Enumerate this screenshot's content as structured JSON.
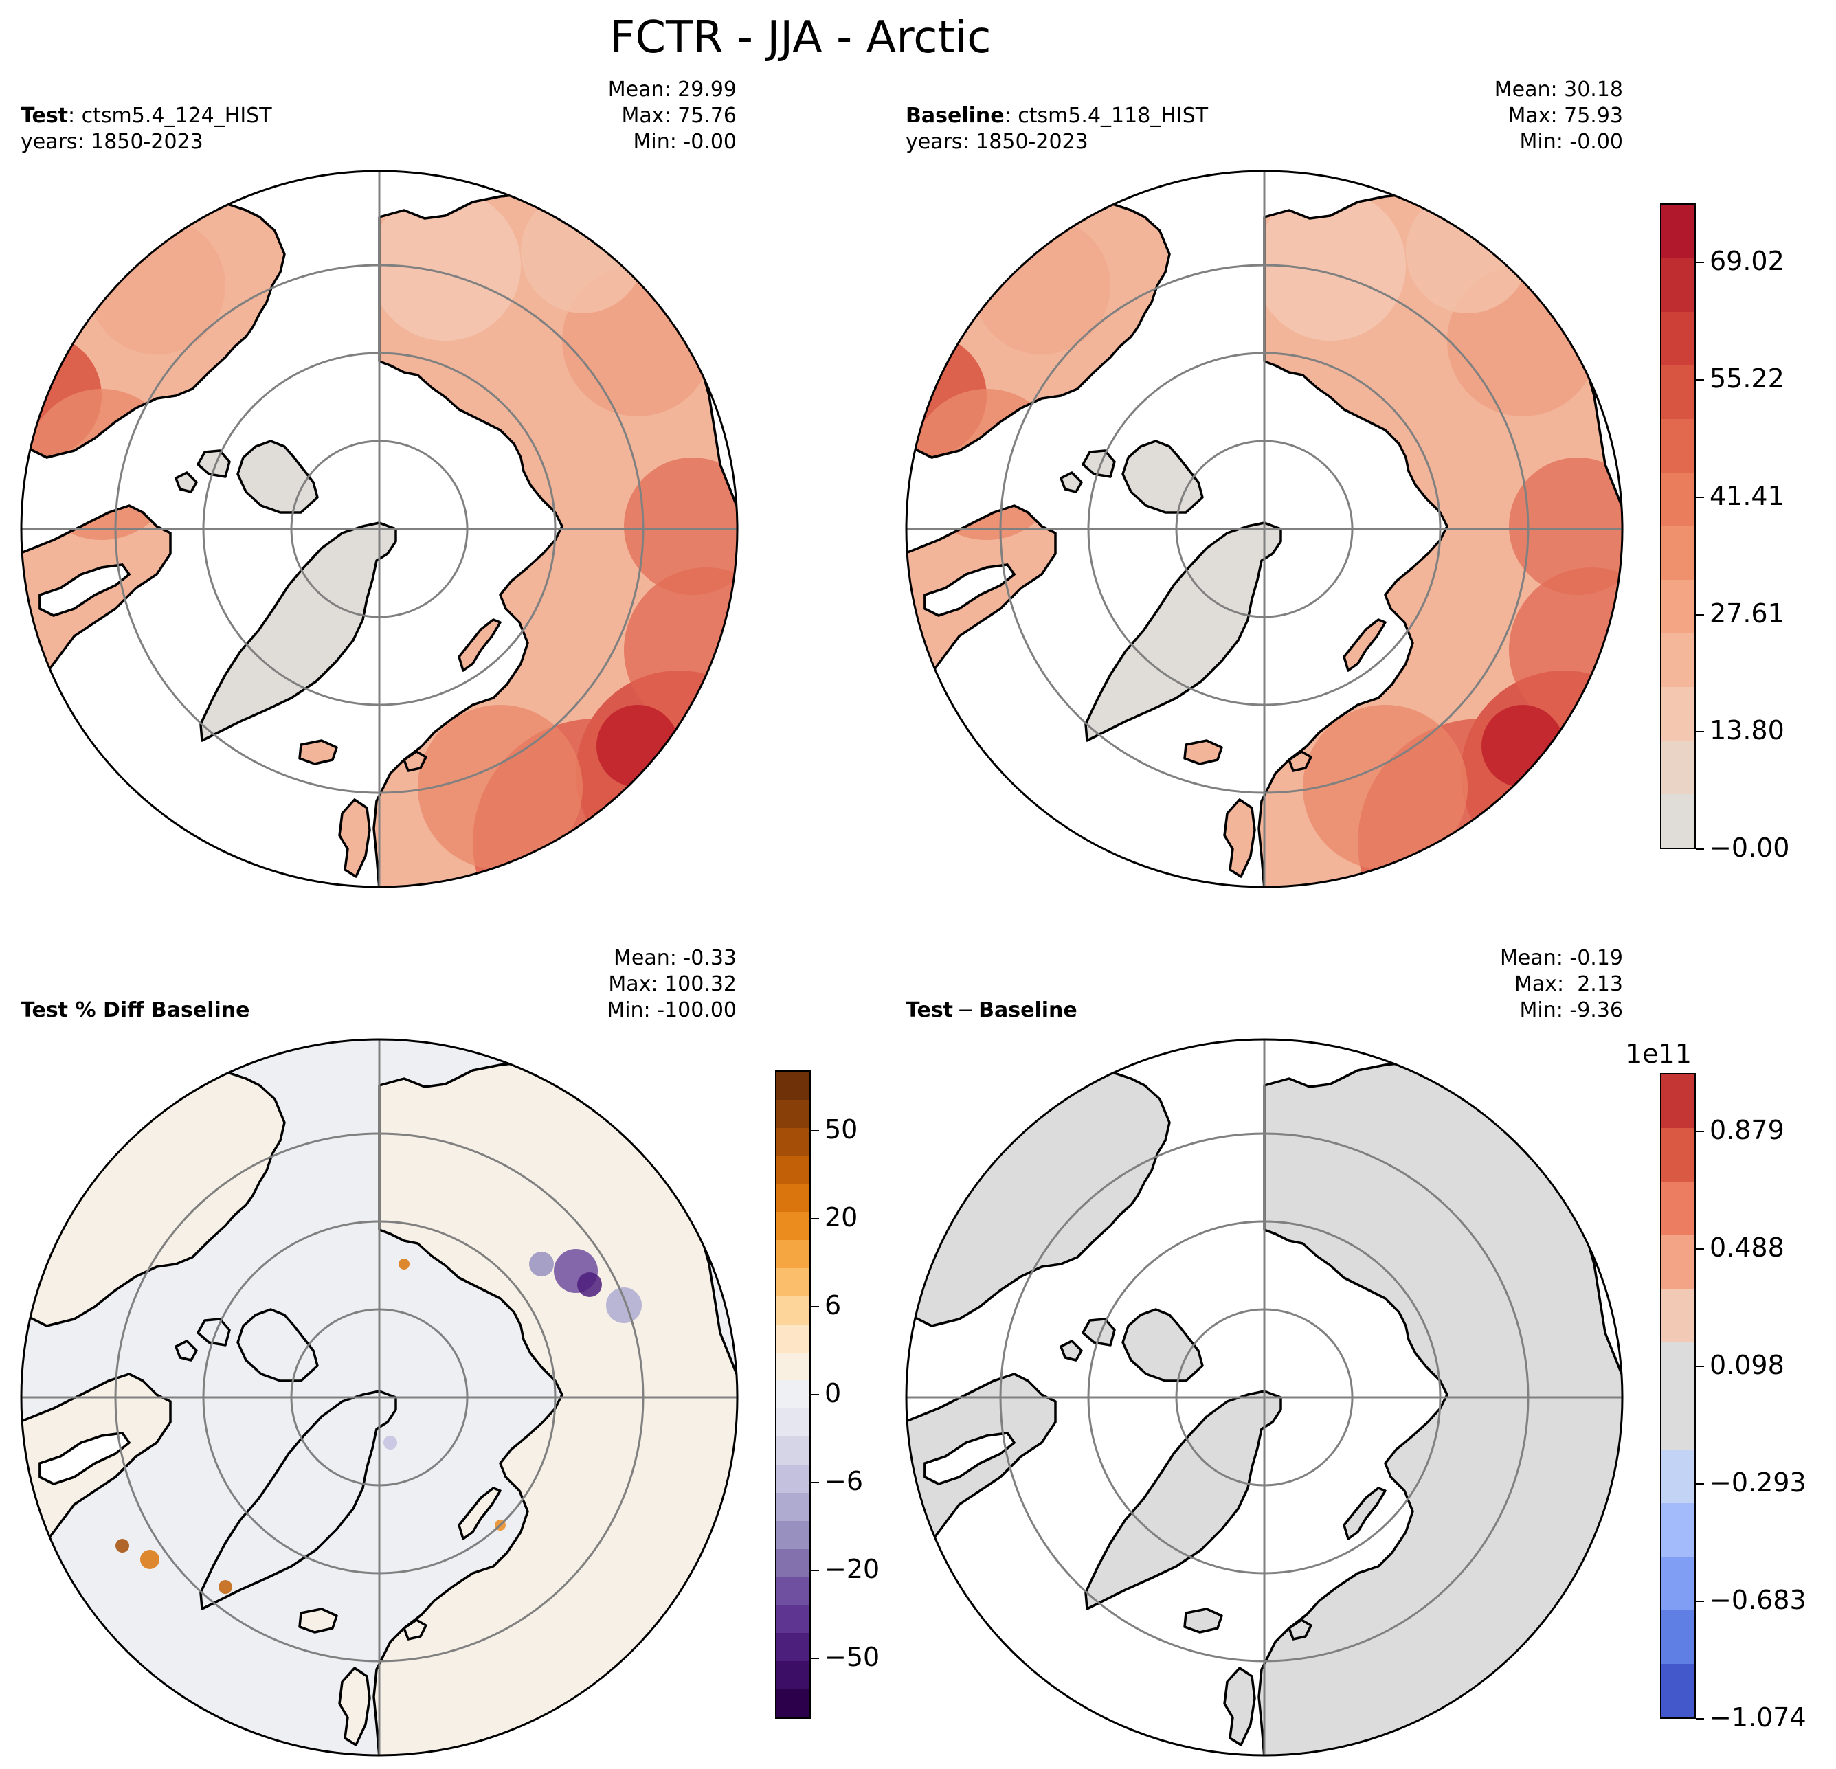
{
  "figure": {
    "title": "FCTR - JJA - Arctic",
    "panels": {
      "test": {
        "label_bold": "Test",
        "label_rest": ": ctsm5.4_124_HIST",
        "years": "years: 1850-2023",
        "mean": "Mean: 29.99",
        "max": "Max: 75.76",
        "min": "Min: -0.00"
      },
      "baseline": {
        "label_bold": "Baseline",
        "label_rest": ": ctsm5.4_118_HIST",
        "years": "years: 1850-2023",
        "mean": "Mean: 30.18",
        "max": "Max: 75.93",
        "min": "Min: -0.00"
      },
      "pct_diff": {
        "label_bold": "Test % Diff Baseline",
        "mean": "Mean: -0.33",
        "max": "Max: 100.32",
        "min": "Min: -100.00"
      },
      "diff": {
        "label_bold": "Test",
        "label_minus": "−",
        "label_rest": "Baseline",
        "mean": "Mean: -0.19",
        "max": "Max:  2.13",
        "min": "Min: -9.36"
      }
    }
  },
  "chart_data": [
    {
      "type": "heatmap",
      "projection": "north-polar-stereographic",
      "title": "Test: ctsm5.4_124_HIST (1850-2023)",
      "variable": "FCTR",
      "season": "JJA",
      "region": "Arctic",
      "mean": 29.99,
      "max": 75.76,
      "min": -0.0,
      "colormap": "white-grey to red",
      "vrange": [
        0,
        76
      ]
    },
    {
      "type": "heatmap",
      "projection": "north-polar-stereographic",
      "title": "Baseline: ctsm5.4_118_HIST (1850-2023)",
      "variable": "FCTR",
      "season": "JJA",
      "region": "Arctic",
      "mean": 30.18,
      "max": 75.93,
      "min": -0.0,
      "colormap": "white-grey to red",
      "vrange": [
        0,
        76
      ],
      "colorbar": {
        "ticks": [
          "69.02",
          "55.22",
          "41.41",
          "27.61",
          "13.80",
          "−0.00"
        ],
        "tick_values": [
          69.02,
          55.22,
          41.41,
          27.61,
          13.8,
          0
        ],
        "range": [
          0,
          76
        ],
        "colors": [
          "#e0dcd8",
          "#ead4c6",
          "#f3c7b0",
          "#f5b79a",
          "#f4a583",
          "#f0916e",
          "#ea7d5c",
          "#e2694d",
          "#d75541",
          "#cc4038",
          "#bf2d30",
          "#b2182b"
        ]
      }
    },
    {
      "type": "heatmap",
      "projection": "north-polar-stereographic",
      "title": "Test % Diff Baseline",
      "mean": -0.33,
      "max": 100.32,
      "min": -100.0,
      "colormap": "PuOr_r (purple negative, orange positive)",
      "colorbar": {
        "ticks": [
          "50",
          "20",
          "6",
          "0",
          "−6",
          "−20",
          "−50"
        ],
        "tick_values": [
          50,
          20,
          6,
          0,
          -6,
          -20,
          -50
        ],
        "colors": [
          "#2d004b",
          "#3c0e66",
          "#4d1f7d",
          "#5e3591",
          "#6f4f9f",
          "#8371ae",
          "#9891c0",
          "#aeaad0",
          "#c3c1de",
          "#d6d5e8",
          "#e6e6f0",
          "#eff0f4",
          "#f9f0e2",
          "#fde5c5",
          "#fdd49a",
          "#fbbf6b",
          "#f5a641",
          "#ea8c1e",
          "#d9750c",
          "#c16007",
          "#a54e07",
          "#893f08",
          "#6f3208"
        ]
      }
    },
    {
      "type": "heatmap",
      "projection": "north-polar-stereographic",
      "title": "Test − Baseline",
      "mean": -0.19,
      "max": 2.13,
      "min": -9.36,
      "colormap": "coolwarm",
      "colorbar": {
        "exponent_label": "1e11",
        "ticks": [
          "0.879",
          "0.488",
          "0.098",
          "−0.293",
          "−0.683",
          "−1.074"
        ],
        "tick_values": [
          0.879,
          0.488,
          0.098,
          -0.293,
          -0.683,
          -1.074
        ],
        "colors": [
          "#4358cb",
          "#5f7fe5",
          "#7f9ef4",
          "#a3bbfb",
          "#c3d3f5",
          "#dcdcdc",
          "#dcdcdc",
          "#f2c9b4",
          "#f4a486",
          "#ec7d61",
          "#da5943",
          "#c43634"
        ]
      }
    }
  ]
}
